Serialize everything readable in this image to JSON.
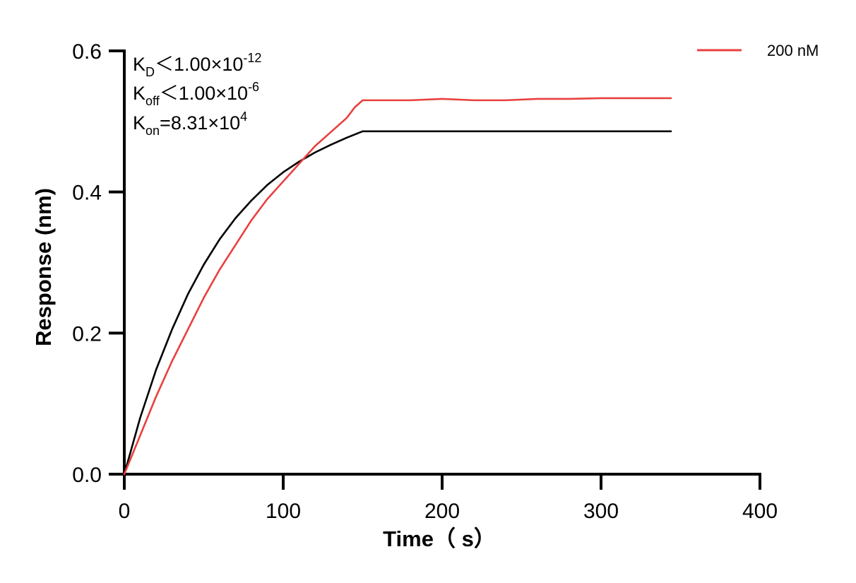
{
  "chart_data": {
    "type": "line",
    "title": "",
    "xlabel": "Time（ s）",
    "ylabel": "Response (nm)",
    "xlim": [
      0,
      400
    ],
    "ylim": [
      0,
      0.6
    ],
    "x_ticks": [
      "0",
      "100",
      "200",
      "300",
      "400"
    ],
    "y_ticks": [
      "0.0",
      "0.2",
      "0.4",
      "0.6"
    ],
    "grid": false,
    "legend_position": "top-right",
    "annotations": [
      {
        "main": "K",
        "sub": "D",
        "rest": "＜1.00×10",
        "sup": "-12"
      },
      {
        "main": "K",
        "sub": "off",
        "rest": "＜1.00×10",
        "sup": "-6"
      },
      {
        "main": "K",
        "sub": "on",
        "rest": "=8.31×10",
        "sup": "4"
      }
    ],
    "series": [
      {
        "name": "200 nM",
        "color": "#e8403f",
        "x": [
          0,
          10,
          20,
          30,
          40,
          50,
          60,
          70,
          80,
          90,
          100,
          110,
          120,
          130,
          140,
          145,
          150,
          160,
          180,
          200,
          220,
          240,
          260,
          280,
          300,
          320,
          344
        ],
        "y": [
          0,
          0.055,
          0.11,
          0.16,
          0.205,
          0.25,
          0.29,
          0.325,
          0.36,
          0.39,
          0.415,
          0.44,
          0.465,
          0.485,
          0.505,
          0.52,
          0.53,
          0.53,
          0.53,
          0.532,
          0.53,
          0.53,
          0.532,
          0.532,
          0.533,
          0.533,
          0.533
        ]
      },
      {
        "name": "",
        "color": "#000000",
        "x": [
          0,
          10,
          20,
          30,
          40,
          50,
          60,
          70,
          80,
          90,
          100,
          110,
          120,
          130,
          140,
          150,
          200,
          250,
          300,
          344
        ],
        "y": [
          0,
          0.08,
          0.148,
          0.205,
          0.255,
          0.297,
          0.333,
          0.363,
          0.388,
          0.41,
          0.428,
          0.443,
          0.456,
          0.467,
          0.477,
          0.486,
          0.486,
          0.486,
          0.486,
          0.486
        ]
      }
    ]
  }
}
